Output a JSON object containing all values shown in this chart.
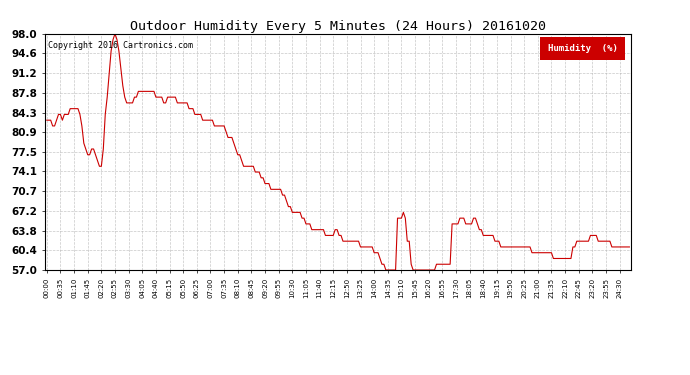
{
  "title": "Outdoor Humidity Every 5 Minutes (24 Hours) 20161020",
  "copyright": "Copyright 2016 Cartronics.com",
  "legend_label": "Humidity  (%)",
  "line_color": "#cc0000",
  "background_color": "#ffffff",
  "grid_color": "#b0b0b0",
  "ylim": [
    57.0,
    98.0
  ],
  "yticks": [
    57.0,
    60.4,
    63.8,
    67.2,
    70.7,
    74.1,
    77.5,
    80.9,
    84.3,
    87.8,
    91.2,
    94.6,
    98.0
  ],
  "humidity_values": [
    83,
    83,
    83,
    82,
    82,
    83,
    84,
    84,
    83,
    84,
    84,
    84,
    85,
    85,
    85,
    85,
    85,
    84,
    82,
    79,
    78,
    77,
    77,
    78,
    78,
    77,
    76,
    75,
    75,
    78,
    84,
    87,
    91,
    95,
    97,
    98,
    97,
    95,
    92,
    89,
    87,
    86,
    86,
    86,
    86,
    87,
    87,
    88,
    88,
    88,
    88,
    88,
    88,
    88,
    88,
    88,
    87,
    87,
    87,
    87,
    86,
    86,
    87,
    87,
    87,
    87,
    87,
    86,
    86,
    86,
    86,
    86,
    86,
    85,
    85,
    85,
    84,
    84,
    84,
    84,
    83,
    83,
    83,
    83,
    83,
    83,
    82,
    82,
    82,
    82,
    82,
    82,
    81,
    80,
    80,
    80,
    79,
    78,
    77,
    77,
    76,
    75,
    75,
    75,
    75,
    75,
    75,
    74,
    74,
    74,
    73,
    73,
    72,
    72,
    72,
    71,
    71,
    71,
    71,
    71,
    71,
    70,
    70,
    69,
    68,
    68,
    67,
    67,
    67,
    67,
    67,
    66,
    66,
    65,
    65,
    65,
    64,
    64,
    64,
    64,
    64,
    64,
    64,
    63,
    63,
    63,
    63,
    63,
    64,
    64,
    63,
    63,
    62,
    62,
    62,
    62,
    62,
    62,
    62,
    62,
    62,
    61,
    61,
    61,
    61,
    61,
    61,
    61,
    60,
    60,
    60,
    59,
    58,
    58,
    57,
    57,
    57,
    57,
    57,
    57,
    66,
    66,
    66,
    67,
    66,
    62,
    62,
    58,
    57,
    57,
    57,
    57,
    57,
    57,
    57,
    57,
    57,
    57,
    57,
    57,
    58,
    58,
    58,
    58,
    58,
    58,
    58,
    58,
    65,
    65,
    65,
    65,
    66,
    66,
    66,
    65,
    65,
    65,
    65,
    66,
    66,
    65,
    64,
    64,
    63,
    63,
    63,
    63,
    63,
    63,
    62,
    62,
    62,
    61,
    61,
    61,
    61,
    61,
    61,
    61,
    61,
    61,
    61,
    61,
    61,
    61,
    61,
    61,
    61,
    60,
    60,
    60,
    60,
    60,
    60,
    60,
    60,
    60,
    60,
    60,
    59,
    59,
    59,
    59,
    59,
    59,
    59,
    59,
    59,
    59,
    61,
    61,
    62,
    62,
    62,
    62,
    62,
    62,
    62,
    63,
    63,
    63,
    63,
    62,
    62,
    62,
    62,
    62,
    62,
    62,
    61,
    61,
    61,
    61,
    61,
    61,
    61,
    61,
    61,
    61
  ]
}
